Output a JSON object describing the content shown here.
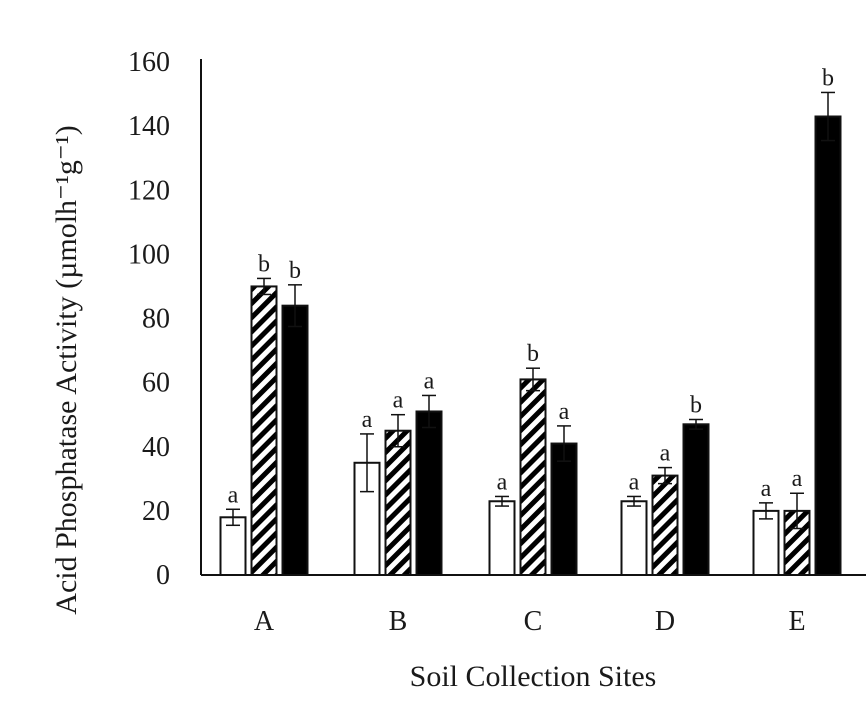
{
  "chart_data": {
    "type": "bar",
    "title": "",
    "xlabel": "Soil Collection Sites",
    "ylabel": "Acid Phosphatase Activity (µmolh⁻¹g⁻¹)",
    "categories": [
      "A",
      "B",
      "C",
      "D",
      "E"
    ],
    "ylim": [
      0,
      160
    ],
    "yticks": [
      0,
      20,
      40,
      60,
      80,
      100,
      120,
      140,
      160
    ],
    "grid": false,
    "legend": "none",
    "series": [
      {
        "fill": "white",
        "values": [
          18,
          35,
          23,
          23,
          20
        ],
        "errors": [
          2.5,
          9,
          1.5,
          1.5,
          2.5
        ],
        "significance": [
          "a",
          "a",
          "a",
          "a",
          "a"
        ]
      },
      {
        "fill": "hatched",
        "values": [
          90,
          45,
          61,
          31,
          20
        ],
        "errors": [
          2.5,
          5,
          3.5,
          2.5,
          5.5
        ],
        "significance": [
          "b",
          "a",
          "b",
          "a",
          "a"
        ]
      },
      {
        "fill": "black",
        "values": [
          84,
          51,
          41,
          47,
          143
        ],
        "errors": [
          6.5,
          5,
          5.5,
          1.5,
          7.5
        ],
        "significance": [
          "b",
          "a",
          "a",
          "b",
          "b"
        ]
      }
    ],
    "colors": {
      "bar_outline": "#111111",
      "solid_fill": "#000000",
      "open_fill": "#ffffff",
      "axis": "#111111",
      "text": "#1a1a1a"
    }
  }
}
